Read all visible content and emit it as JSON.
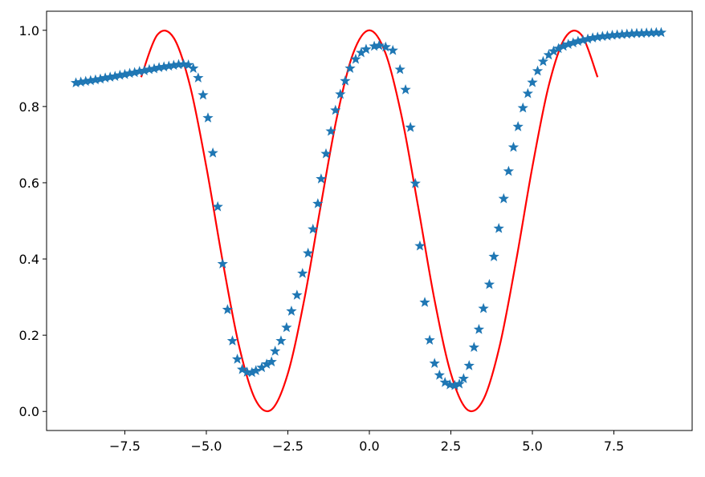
{
  "chart_data": {
    "type": "line",
    "xlim": [
      -9.9,
      9.9
    ],
    "ylim": [
      -0.05,
      1.05
    ],
    "xticks": [
      {
        "value": -7.5,
        "label": "−7.5"
      },
      {
        "value": -5,
        "label": "−5.0"
      },
      {
        "value": -2.5,
        "label": "−2.5"
      },
      {
        "value": 0,
        "label": "0.0"
      },
      {
        "value": 2.5,
        "label": "2.5"
      },
      {
        "value": 5,
        "label": "5.0"
      },
      {
        "value": 7.5,
        "label": "7.5"
      }
    ],
    "yticks": [
      {
        "value": 0,
        "label": "0.0"
      },
      0.2,
      0.4,
      0.6,
      0.8,
      {
        "value": 1,
        "label": "1.0"
      }
    ],
    "grid": false,
    "series": [
      {
        "color": "#ff0000",
        "marker": "none",
        "linestyle": "solid",
        "x": [
          -7,
          -6.5,
          -6,
          -5.5,
          -5,
          -4.5,
          -4,
          -3.5,
          -3,
          -2.5,
          -2,
          -1.5,
          -1,
          -0.5,
          0,
          0.5,
          1,
          1.5,
          2,
          2.5,
          3,
          3.5,
          4,
          4.5,
          5,
          5.5,
          6,
          6.5,
          7
        ],
        "values": [
          0.877,
          0.9883,
          0.9801,
          0.8544,
          0.6418,
          0.3946,
          0.1732,
          0.0318,
          0.005,
          0.0994,
          0.2919,
          0.5354,
          0.7702,
          0.9388,
          1.0,
          0.9388,
          0.7702,
          0.5354,
          0.2919,
          0.0994,
          0.005,
          0.0318,
          0.1732,
          0.3946,
          0.6418,
          0.8544,
          0.9801,
          0.9883,
          0.877
        ]
      },
      {
        "color": "#1f77b4",
        "marker": "star",
        "linestyle": "none",
        "x": [
          -9,
          -8.85,
          -8.7,
          -8.55,
          -8.4,
          -8.25,
          -8.1,
          -7.95,
          -7.8,
          -7.65,
          -7.5,
          -7.35,
          -7.2,
          -7.05,
          -6.9,
          -6.75,
          -6.6,
          -6.45,
          -6.3,
          -6.15,
          -6,
          -5.85,
          -5.7,
          -5.55,
          -5.4,
          -5.25,
          -5.1,
          -4.95,
          -4.8,
          -4.65,
          -4.5,
          -4.35,
          -4.2,
          -4.05,
          -3.9,
          -3.75,
          -3.6,
          -3.48,
          -3.3,
          -3.15,
          -3.0,
          -2.89,
          -2.71,
          -2.54,
          -2.39,
          -2.22,
          -2.05,
          -1.88,
          -1.73,
          -1.58,
          -1.48,
          -1.33,
          -1.18,
          -1.04,
          -0.89,
          -0.74,
          -0.59,
          -0.42,
          -0.25,
          -0.1,
          0.15,
          0.3,
          0.5,
          0.72,
          0.94,
          1.11,
          1.26,
          1.41,
          1.55,
          1.7,
          1.85,
          2.0,
          2.15,
          2.32,
          2.47,
          2.62,
          2.76,
          2.89,
          3.06,
          3.21,
          3.36,
          3.5,
          3.68,
          3.82,
          3.97,
          4.12,
          4.27,
          4.42,
          4.56,
          4.71,
          4.86,
          5.0,
          5.16,
          5.33,
          5.5,
          5.65,
          5.8,
          5.95,
          6.1,
          6.25,
          6.4,
          6.55,
          6.7,
          6.85,
          7.0,
          7.15,
          7.3,
          7.45,
          7.6,
          7.75,
          7.9,
          8.05,
          8.2,
          8.35,
          8.5,
          8.65,
          8.8,
          8.95
        ],
        "values": [
          0.862,
          0.864,
          0.866,
          0.868,
          0.87,
          0.872,
          0.875,
          0.877,
          0.879,
          0.882,
          0.884,
          0.887,
          0.889,
          0.892,
          0.894,
          0.897,
          0.899,
          0.902,
          0.904,
          0.906,
          0.908,
          0.91,
          0.911,
          0.909,
          0.9,
          0.875,
          0.83,
          0.77,
          0.678,
          0.537,
          0.387,
          0.267,
          0.185,
          0.137,
          0.11,
          0.103,
          0.102,
          0.107,
          0.115,
          0.124,
          0.13,
          0.158,
          0.185,
          0.22,
          0.263,
          0.305,
          0.362,
          0.415,
          0.478,
          0.545,
          0.61,
          0.676,
          0.735,
          0.79,
          0.832,
          0.867,
          0.9,
          0.924,
          0.941,
          0.95,
          0.958,
          0.96,
          0.956,
          0.947,
          0.897,
          0.844,
          0.745,
          0.598,
          0.434,
          0.286,
          0.187,
          0.126,
          0.095,
          0.076,
          0.07,
          0.068,
          0.072,
          0.086,
          0.12,
          0.168,
          0.215,
          0.27,
          0.333,
          0.406,
          0.48,
          0.558,
          0.63,
          0.693,
          0.747,
          0.796,
          0.834,
          0.863,
          0.893,
          0.918,
          0.935,
          0.945,
          0.952,
          0.958,
          0.963,
          0.967,
          0.971,
          0.974,
          0.977,
          0.98,
          0.982,
          0.984,
          0.985,
          0.987,
          0.988,
          0.989,
          0.99,
          0.991,
          0.992,
          0.992,
          0.993,
          0.993,
          0.994,
          0.994
        ]
      }
    ]
  }
}
